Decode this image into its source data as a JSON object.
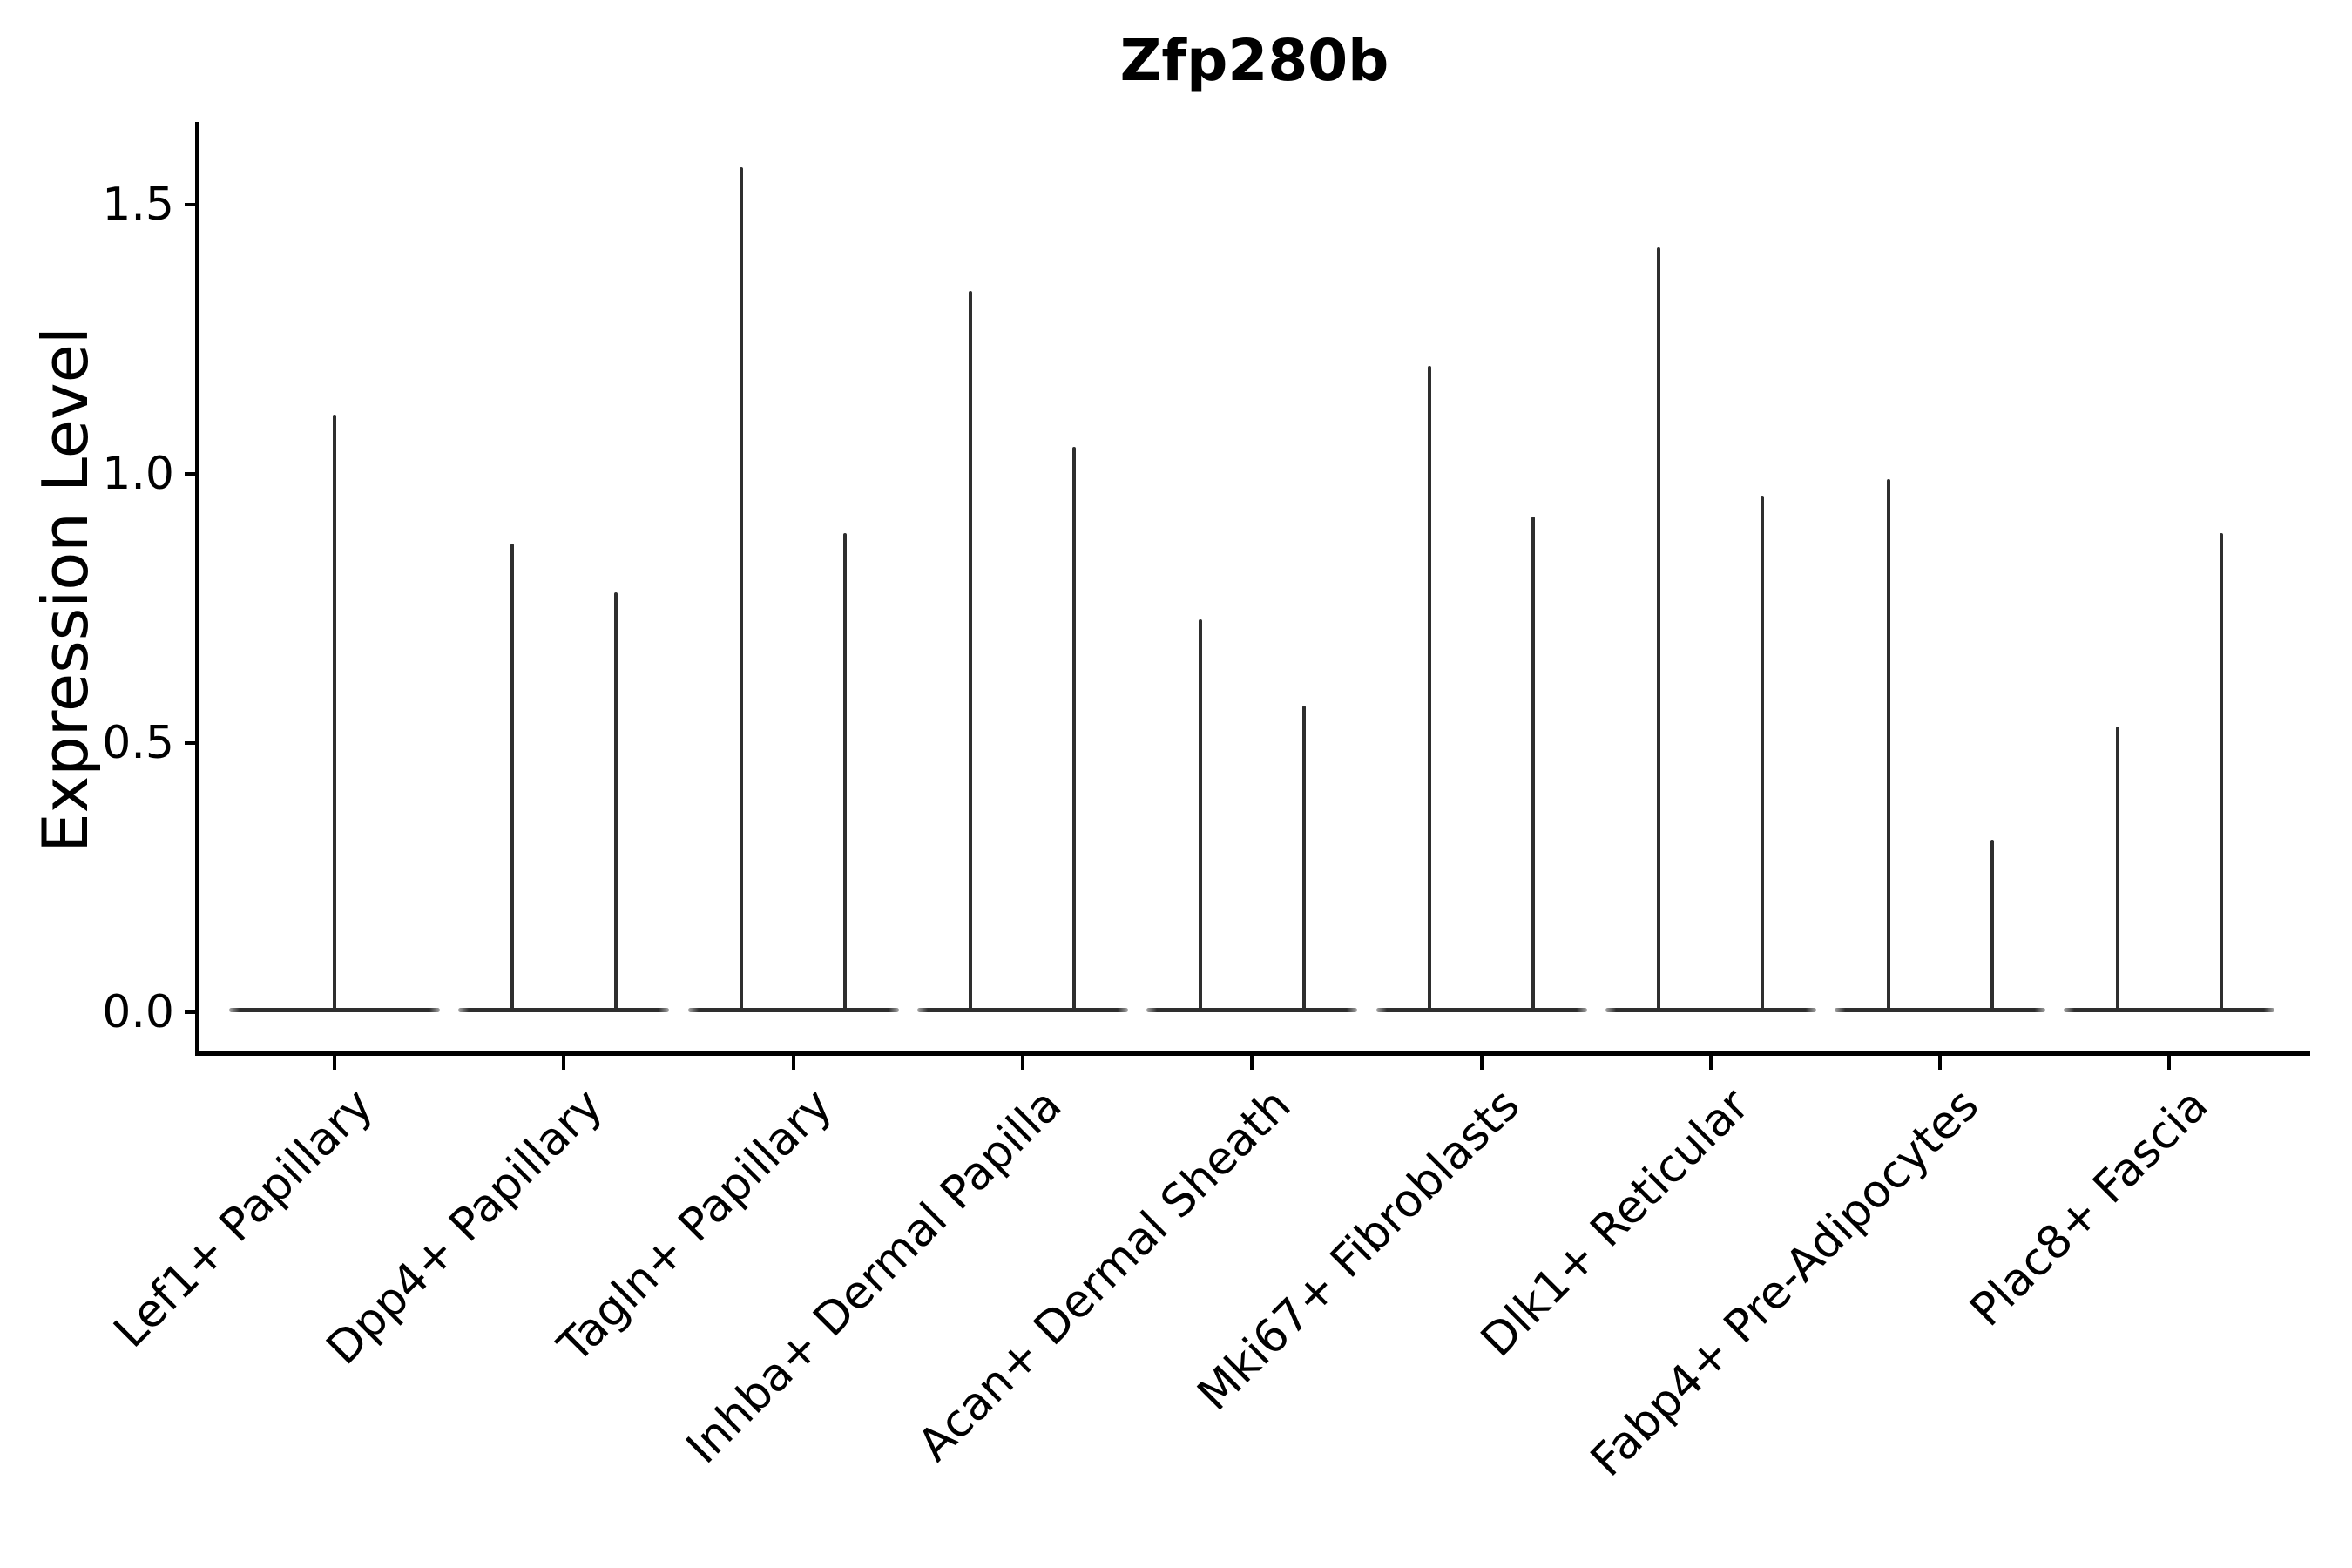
{
  "figure": {
    "title": "Zfp280b",
    "background_color": "#ffffff",
    "text_color": "#000000"
  },
  "chart_data": {
    "type": "violin",
    "title": "Zfp280b",
    "xlabel": "",
    "ylabel": "Expression Level",
    "categories": [
      "Lef1+ Papillary",
      "Dpp4+ Papillary",
      "Tagln+ Papillary",
      "Inhba+ Dermal Papilla",
      "Acan+ Dermal Sheath",
      "Mki67+ Fibroblasts",
      "Dlk1+ Reticular",
      "Fabp4+ Pre-Adipocytes",
      "Plac8+ Fascia"
    ],
    "series": [
      {
        "name": "violin-left",
        "max_values": [
          1.11,
          0.87,
          1.57,
          1.34,
          0.73,
          1.2,
          1.42,
          0.99,
          0.53
        ]
      },
      {
        "name": "violin-right",
        "max_values": [
          null,
          0.78,
          0.89,
          1.05,
          0.57,
          0.92,
          0.96,
          0.32,
          0.89
        ]
      }
    ],
    "violin_shape_note": "Each violin is collapsed flat at expression 0 (wide thin base line) with a narrow vertical spike reaching its maximum value; the first category has a single centered violin, all others have two violins per category.",
    "ytick_labels": [
      "0.0",
      "0.5",
      "1.0",
      "1.5"
    ],
    "ytick_values": [
      0.0,
      0.5,
      1.0,
      1.5
    ],
    "ylim": [
      -0.078,
      1.65
    ],
    "grid": false,
    "legend_position": "none",
    "violin_color": "#2e2e2e",
    "violin_base_edge_color": "#a8a8a8",
    "spine_color": "#000000"
  }
}
